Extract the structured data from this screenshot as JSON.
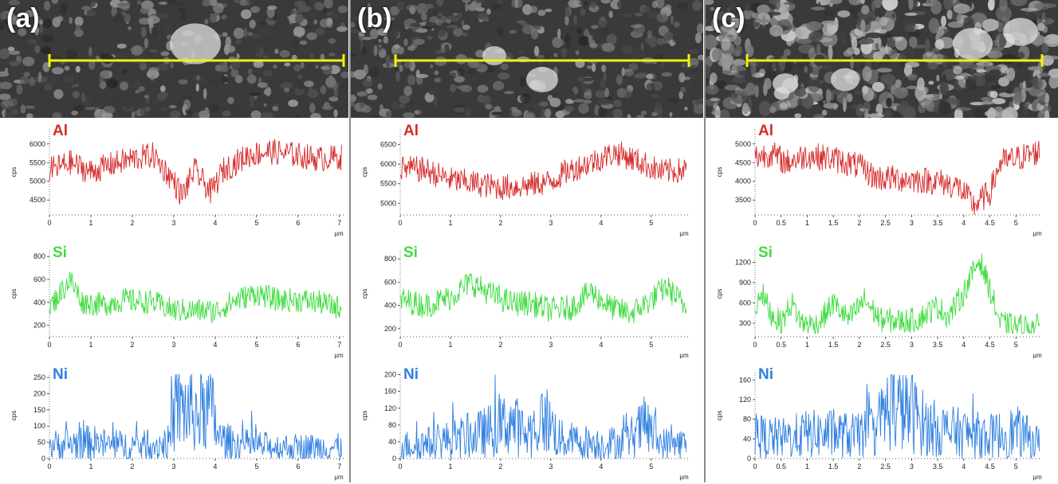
{
  "panels": [
    {
      "label": "(a)"
    },
    {
      "label": "(b)"
    },
    {
      "label": "(c)"
    }
  ],
  "colors": {
    "Al": "#d62a2a",
    "Si": "#3fdc3f",
    "Ni": "#2f7fe0",
    "scan_line": "#f2f20a"
  },
  "chart_data": [
    {
      "type": "line",
      "panel": "(a)",
      "series": [
        {
          "name": "Al",
          "values_range": [
            4200,
            6400
          ],
          "mean": 5500
        }
      ],
      "xlabel": "µm",
      "ylabel": "cps",
      "xlim": [
        0,
        7.1
      ],
      "xticks": [
        0,
        1,
        2,
        3,
        4,
        5,
        6,
        7
      ],
      "ylim": [
        4100,
        6400
      ],
      "yticks": [
        4500,
        5000,
        5500,
        6000
      ],
      "profile": [
        [
          0,
          5300
        ],
        [
          0.5,
          5500
        ],
        [
          1,
          5250
        ],
        [
          1.5,
          5450
        ],
        [
          2,
          5600
        ],
        [
          2.5,
          5700
        ],
        [
          3,
          5000
        ],
        [
          3.2,
          4600
        ],
        [
          3.5,
          5300
        ],
        [
          3.9,
          4700
        ],
        [
          4.2,
          5300
        ],
        [
          4.8,
          5700
        ],
        [
          5.3,
          5800
        ],
        [
          6,
          5700
        ],
        [
          6.5,
          5600
        ],
        [
          7.05,
          5650
        ]
      ]
    },
    {
      "type": "line",
      "panel": "(a)",
      "series": [
        {
          "name": "Si",
          "values_range": [
            150,
            820
          ],
          "mean": 400
        }
      ],
      "xlabel": "µm",
      "ylabel": "cps",
      "xlim": [
        0,
        7.1
      ],
      "xticks": [
        0,
        1,
        2,
        3,
        4,
        5,
        6,
        7
      ],
      "ylim": [
        100,
        850
      ],
      "yticks": [
        200,
        400,
        600,
        800
      ],
      "profile": [
        [
          0,
          350
        ],
        [
          0.5,
          600
        ],
        [
          0.8,
          400
        ],
        [
          1.3,
          380
        ],
        [
          1.8,
          420
        ],
        [
          2.5,
          400
        ],
        [
          3,
          330
        ],
        [
          3.5,
          330
        ],
        [
          4,
          320
        ],
        [
          4.5,
          420
        ],
        [
          5,
          480
        ],
        [
          5.5,
          420
        ],
        [
          6,
          420
        ],
        [
          6.5,
          400
        ],
        [
          7.05,
          350
        ]
      ]
    },
    {
      "type": "line",
      "panel": "(a)",
      "series": [
        {
          "name": "Ni",
          "values_range": [
            0,
            260
          ],
          "mean": 45
        }
      ],
      "xlabel": "µm",
      "ylabel": "cps",
      "xlim": [
        0,
        7.1
      ],
      "xticks": [
        0,
        1,
        2,
        3,
        4,
        5,
        6,
        7
      ],
      "ylim": [
        0,
        265
      ],
      "yticks": [
        0,
        50,
        100,
        150,
        200,
        250
      ],
      "profile": [
        [
          0,
          40
        ],
        [
          0.5,
          45
        ],
        [
          1,
          50
        ],
        [
          1.5,
          40
        ],
        [
          2,
          40
        ],
        [
          2.5,
          40
        ],
        [
          2.9,
          50
        ],
        [
          3.05,
          160
        ],
        [
          3.3,
          150
        ],
        [
          3.6,
          140
        ],
        [
          3.9,
          160
        ],
        [
          4.1,
          60
        ],
        [
          4.5,
          45
        ],
        [
          5,
          40
        ],
        [
          5.5,
          35
        ],
        [
          6,
          35
        ],
        [
          6.5,
          35
        ],
        [
          7.05,
          35
        ]
      ]
    },
    {
      "type": "line",
      "panel": "(b)",
      "series": [
        {
          "name": "Al",
          "values_range": [
            4800,
            6900
          ],
          "mean": 5750
        }
      ],
      "xlabel": "µm",
      "ylabel": "cps",
      "xlim": [
        0,
        5.75
      ],
      "xticks": [
        0,
        1,
        2,
        3,
        4,
        5
      ],
      "ylim": [
        4700,
        6900
      ],
      "yticks": [
        5000,
        5500,
        6000,
        6500
      ],
      "profile": [
        [
          0,
          5900
        ],
        [
          0.5,
          5850
        ],
        [
          1,
          5600
        ],
        [
          1.5,
          5500
        ],
        [
          2,
          5400
        ],
        [
          2.5,
          5450
        ],
        [
          3,
          5550
        ],
        [
          3.3,
          5800
        ],
        [
          3.8,
          6050
        ],
        [
          4.3,
          6300
        ],
        [
          4.7,
          6100
        ],
        [
          5.2,
          5800
        ],
        [
          5.7,
          5850
        ]
      ]
    },
    {
      "type": "line",
      "panel": "(b)",
      "series": [
        {
          "name": "Si",
          "values_range": [
            150,
            850
          ],
          "mean": 420
        }
      ],
      "xlabel": "µm",
      "ylabel": "cps",
      "xlim": [
        0,
        5.75
      ],
      "xticks": [
        0,
        1,
        2,
        3,
        4,
        5
      ],
      "ylim": [
        130,
        870
      ],
      "yticks": [
        200,
        400,
        600,
        800
      ],
      "profile": [
        [
          0,
          450
        ],
        [
          0.5,
          400
        ],
        [
          1,
          470
        ],
        [
          1.4,
          600
        ],
        [
          1.8,
          500
        ],
        [
          2.2,
          420
        ],
        [
          2.6,
          420
        ],
        [
          3,
          360
        ],
        [
          3.4,
          380
        ],
        [
          3.8,
          520
        ],
        [
          4.2,
          380
        ],
        [
          4.6,
          330
        ],
        [
          5,
          450
        ],
        [
          5.3,
          560
        ],
        [
          5.7,
          380
        ]
      ]
    },
    {
      "type": "line",
      "panel": "(b)",
      "series": [
        {
          "name": "Ni",
          "values_range": [
            0,
            200
          ],
          "mean": 45
        }
      ],
      "xlabel": "µm",
      "ylabel": "cps",
      "xlim": [
        0,
        5.75
      ],
      "xticks": [
        0,
        1,
        2,
        3,
        4,
        5
      ],
      "ylim": [
        0,
        205
      ],
      "yticks": [
        0,
        40,
        80,
        120,
        160,
        200
      ],
      "profile": [
        [
          0,
          30
        ],
        [
          0.5,
          35
        ],
        [
          1,
          45
        ],
        [
          1.5,
          55
        ],
        [
          2,
          75
        ],
        [
          2.2,
          90
        ],
        [
          2.5,
          55
        ],
        [
          2.9,
          95
        ],
        [
          3.2,
          45
        ],
        [
          3.6,
          40
        ],
        [
          4,
          35
        ],
        [
          4.5,
          40
        ],
        [
          4.9,
          80
        ],
        [
          5.2,
          35
        ],
        [
          5.7,
          35
        ]
      ]
    },
    {
      "type": "line",
      "panel": "(c)",
      "series": [
        {
          "name": "Al",
          "values_range": [
            3100,
            5400
          ],
          "mean": 4300
        }
      ],
      "xlabel": "µm",
      "ylabel": "cps",
      "xlim": [
        0,
        5.5
      ],
      "xticks": [
        0,
        0.5,
        1,
        1.5,
        2,
        2.5,
        3,
        3.5,
        4,
        4.5,
        5
      ],
      "ylim": [
        3100,
        5400
      ],
      "yticks": [
        3500,
        4000,
        4500,
        5000
      ],
      "profile": [
        [
          0,
          4650
        ],
        [
          0.3,
          4750
        ],
        [
          0.6,
          4500
        ],
        [
          1,
          4700
        ],
        [
          1.5,
          4600
        ],
        [
          2,
          4400
        ],
        [
          2.3,
          4100
        ],
        [
          3,
          4050
        ],
        [
          3.5,
          4000
        ],
        [
          3.9,
          3850
        ],
        [
          4.2,
          3350
        ],
        [
          4.5,
          3700
        ],
        [
          4.7,
          4500
        ],
        [
          5,
          4600
        ],
        [
          5.45,
          4800
        ]
      ]
    },
    {
      "type": "line",
      "panel": "(c)",
      "series": [
        {
          "name": "Si",
          "values_range": [
            150,
            1330
          ],
          "mean": 380
        }
      ],
      "xlabel": "µm",
      "ylabel": "cps",
      "xlim": [
        0,
        5.5
      ],
      "xticks": [
        0,
        0.5,
        1,
        1.5,
        2,
        2.5,
        3,
        3.5,
        4,
        4.5,
        5
      ],
      "ylim": [
        100,
        1370
      ],
      "yticks": [
        300,
        600,
        900,
        1200
      ],
      "profile": [
        [
          0,
          450
        ],
        [
          0.1,
          800
        ],
        [
          0.3,
          450
        ],
        [
          0.5,
          300
        ],
        [
          0.7,
          600
        ],
        [
          0.9,
          300
        ],
        [
          1.2,
          280
        ],
        [
          1.5,
          600
        ],
        [
          1.8,
          350
        ],
        [
          2.1,
          650
        ],
        [
          2.4,
          350
        ],
        [
          2.8,
          330
        ],
        [
          3.1,
          350
        ],
        [
          3.5,
          550
        ],
        [
          3.7,
          400
        ],
        [
          4,
          750
        ],
        [
          4.3,
          1250
        ],
        [
          4.5,
          800
        ],
        [
          4.7,
          300
        ],
        [
          5,
          250
        ],
        [
          5.45,
          250
        ]
      ]
    },
    {
      "type": "line",
      "panel": "(c)",
      "series": [
        {
          "name": "Ni",
          "values_range": [
            0,
            170
          ],
          "mean": 50
        }
      ],
      "xlabel": "µm",
      "ylabel": "cps",
      "xlim": [
        0,
        5.5
      ],
      "xticks": [
        0,
        0.5,
        1,
        1.5,
        2,
        2.5,
        3,
        3.5,
        4,
        4.5,
        5
      ],
      "ylim": [
        0,
        175
      ],
      "yticks": [
        0,
        40,
        80,
        120,
        160
      ],
      "profile": [
        [
          0,
          90
        ],
        [
          0.1,
          45
        ],
        [
          0.5,
          40
        ],
        [
          1,
          50
        ],
        [
          1.5,
          50
        ],
        [
          2,
          45
        ],
        [
          2.3,
          60
        ],
        [
          2.6,
          110
        ],
        [
          3,
          95
        ],
        [
          3.3,
          65
        ],
        [
          3.7,
          55
        ],
        [
          4.1,
          50
        ],
        [
          4.5,
          45
        ],
        [
          5,
          55
        ],
        [
          5.45,
          30
        ]
      ]
    }
  ]
}
